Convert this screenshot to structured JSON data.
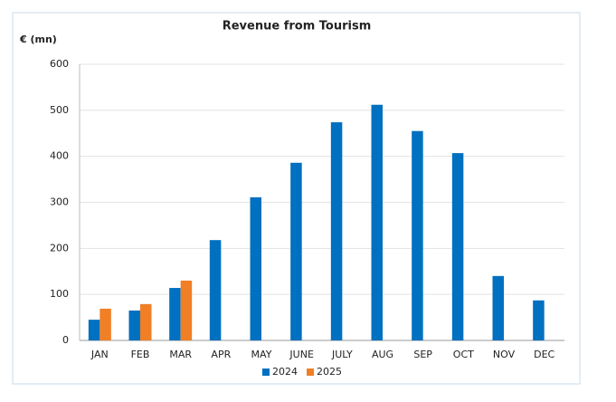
{
  "chart_data": {
    "type": "bar",
    "title": "Revenue from Tourism",
    "y_label": "€ (mn)",
    "categories": [
      "JAN",
      "FEB",
      "MAR",
      "APR",
      "MAY",
      "JUNE",
      "JULY",
      "AUG",
      "SEP",
      "OCT",
      "NOV",
      "DEC"
    ],
    "series": [
      {
        "name": "2024",
        "color": "#0070c0",
        "values": [
          45,
          65,
          114,
          218,
          311,
          386,
          474,
          512,
          455,
          407,
          140,
          87
        ]
      },
      {
        "name": "2025",
        "color": "#f07f26",
        "values": [
          69,
          79,
          130,
          null,
          null,
          null,
          null,
          null,
          null,
          null,
          null,
          null
        ]
      }
    ],
    "ylim": [
      0,
      600
    ],
    "yticks": [
      0,
      100,
      200,
      300,
      400,
      500,
      600
    ],
    "grid": true,
    "legend": "bottom"
  }
}
